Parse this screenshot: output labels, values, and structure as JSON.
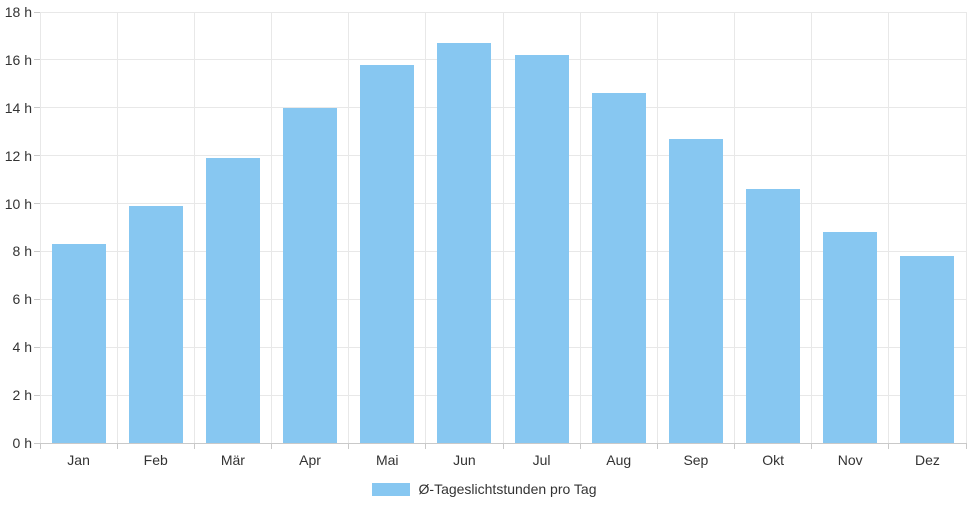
{
  "chart_data": {
    "type": "bar",
    "title": "",
    "xlabel": "",
    "ylabel": "",
    "unit": "h",
    "categories": [
      "Jan",
      "Feb",
      "Mär",
      "Apr",
      "Mai",
      "Jun",
      "Jul",
      "Aug",
      "Sep",
      "Okt",
      "Nov",
      "Dez"
    ],
    "values": [
      8.3,
      9.9,
      11.9,
      14.0,
      15.8,
      16.7,
      16.2,
      14.6,
      12.7,
      10.6,
      8.8,
      7.8
    ],
    "ylim": [
      0,
      18
    ],
    "ytick_step": 2,
    "ytick_labels": [
      "0 h",
      "2 h",
      "4 h",
      "6 h",
      "8 h",
      "10 h",
      "12 h",
      "14 h",
      "16 h",
      "18 h"
    ],
    "grid": true,
    "legend": {
      "position": "bottom",
      "items": [
        {
          "label": "Ø-Tageslichtstunden pro Tag",
          "color": "#87C7F1"
        }
      ]
    },
    "colors": {
      "bar": "#87C7F1",
      "grid": "#E8E8E8",
      "axis": "#C9C9C9",
      "text": "#333333",
      "background": "#FFFFFF"
    }
  }
}
